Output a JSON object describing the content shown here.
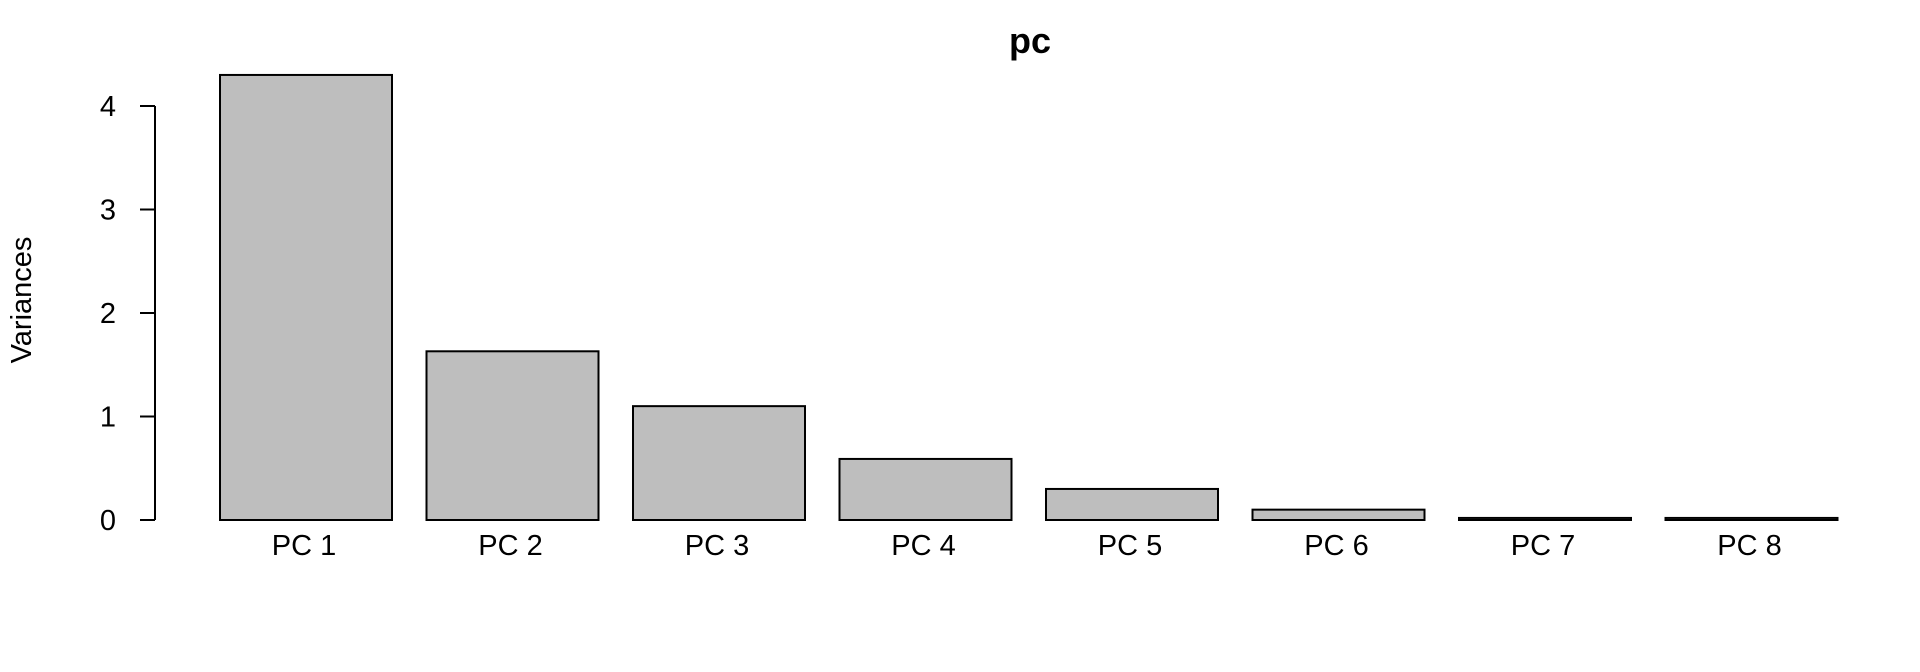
{
  "chart_data": {
    "type": "bar",
    "title": "pc",
    "ylabel": "Variances",
    "xlabel": "",
    "categories": [
      "PC 1",
      "PC 2",
      "PC 3",
      "PC 4",
      "PC 5",
      "PC 6",
      "PC 7",
      "PC 8"
    ],
    "values": [
      4.3,
      1.63,
      1.1,
      0.59,
      0.3,
      0.1,
      0.02,
      0.02
    ],
    "yticks": [
      "0",
      "1",
      "2",
      "3",
      "4"
    ],
    "ylim": [
      0,
      4.3
    ],
    "grid": false,
    "bar_color": "#bebebe",
    "bar_edge_color": "#000000"
  }
}
